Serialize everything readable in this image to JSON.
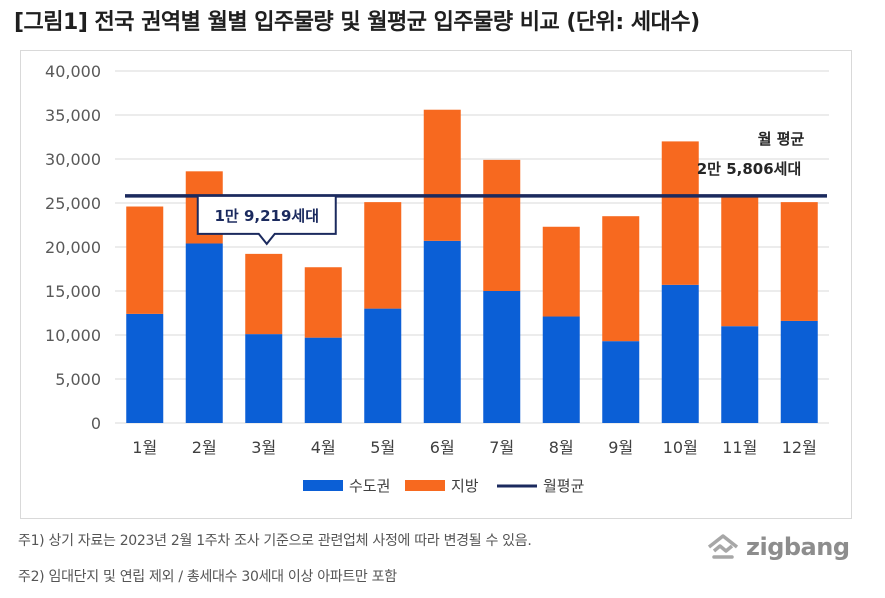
{
  "title": "[그림1] 전국 권역별 월별 입주물량 및 월평균 입주물량 비교 (단위: 세대수)",
  "chart_data": {
    "type": "bar",
    "stacked": true,
    "categories": [
      "1월",
      "2월",
      "3월",
      "4월",
      "5월",
      "6월",
      "7월",
      "8월",
      "9월",
      "10월",
      "11월",
      "12월"
    ],
    "series": [
      {
        "name": "수도권",
        "color": "#0b5fd6",
        "values": [
          12400,
          20400,
          10100,
          9700,
          13000,
          20700,
          15000,
          12100,
          9300,
          15700,
          11000,
          11600
        ]
      },
      {
        "name": "지방",
        "color": "#f7691f",
        "values": [
          12200,
          8200,
          9119,
          8000,
          12100,
          14900,
          14900,
          10200,
          14200,
          16300,
          14800,
          13500
        ]
      }
    ],
    "average_line": {
      "name": "월평균",
      "value": 25806,
      "color": "#1b2a5e"
    },
    "ylim": [
      0,
      40000
    ],
    "yticks": [
      "0",
      "5,000",
      "10,000",
      "15,000",
      "20,000",
      "25,000",
      "30,000",
      "35,000",
      "40,000"
    ],
    "ytick_values": [
      0,
      5000,
      10000,
      15000,
      20000,
      25000,
      30000,
      35000,
      40000
    ],
    "grid": true,
    "legend_position": "bottom",
    "annotations": {
      "avg_label_line1": "월 평균",
      "avg_label_line2": "2만 5,806세대",
      "callout": "1만 9,219세대"
    }
  },
  "notes": [
    "주1) 상기 자료는 2023년 2월 1주차 조사 기준으로 관련업체 사정에 따라 변경될 수 있음.",
    "주2) 임대단지 및 연립 제외 / 총세대수 30세대 이상 아파트만 포함"
  ],
  "logo": {
    "text": "zigbang",
    "icon": "zigbang-logo-icon"
  }
}
